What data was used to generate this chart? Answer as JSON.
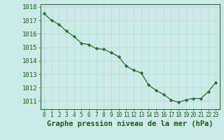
{
  "x": [
    0,
    1,
    2,
    3,
    4,
    5,
    6,
    7,
    8,
    9,
    10,
    11,
    12,
    13,
    14,
    15,
    16,
    17,
    18,
    19,
    20,
    21,
    22,
    23
  ],
  "y": [
    1017.5,
    1017.0,
    1016.7,
    1016.2,
    1015.8,
    1015.3,
    1015.2,
    1014.9,
    1014.85,
    1014.6,
    1014.3,
    1013.6,
    1013.3,
    1013.1,
    1012.2,
    1011.8,
    1011.5,
    1011.1,
    1010.9,
    1011.1,
    1011.2,
    1011.2,
    1011.7,
    1012.4
  ],
  "ylim": [
    1010.4,
    1018.2
  ],
  "yticks": [
    1011,
    1012,
    1013,
    1014,
    1015,
    1016,
    1017,
    1018
  ],
  "xticks": [
    0,
    1,
    2,
    3,
    4,
    5,
    6,
    7,
    8,
    9,
    10,
    11,
    12,
    13,
    14,
    15,
    16,
    17,
    18,
    19,
    20,
    21,
    22,
    23
  ],
  "xlabel": "Graphe pression niveau de la mer (hPa)",
  "line_color": "#2d6e2d",
  "marker": "D",
  "marker_size": 2.2,
  "bg_color": "#cceae8",
  "grid_color": "#b8d8d8",
  "tick_color": "#1a5c1a",
  "xlabel_color": "#1a5c1a",
  "xlabel_fontsize": 7.5,
  "ytick_fontsize": 6.5,
  "xtick_fontsize": 5.5
}
